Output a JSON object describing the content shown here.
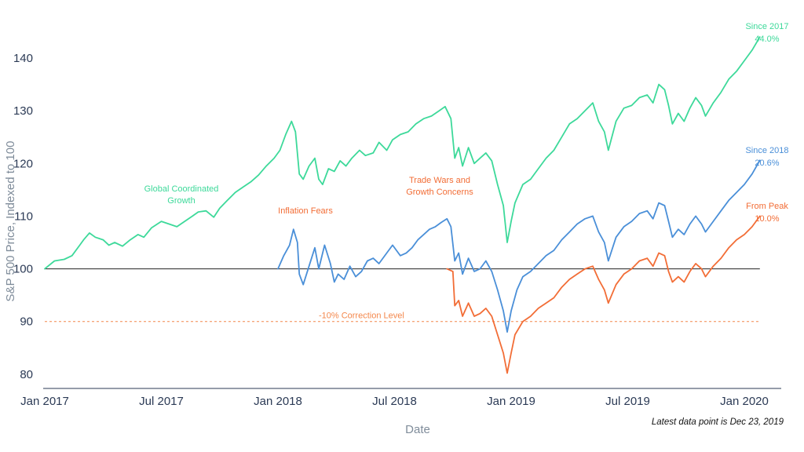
{
  "chart_data": {
    "type": "line",
    "xlabel": "Date",
    "ylabel": "S&P 500 Price, Indexed to 100",
    "ylim": [
      77,
      147
    ],
    "x_ticks": [
      "Jan 2017",
      "Jul 2017",
      "Jan 2018",
      "Jul 2018",
      "Jan 2019",
      "Jul 2019",
      "Jan 2020"
    ],
    "y_ticks": [
      80,
      90,
      100,
      110,
      120,
      130,
      140
    ],
    "x_range_months": [
      0,
      36
    ],
    "baseline": {
      "value": 100,
      "color": "#222222"
    },
    "correction": {
      "value": 90,
      "label": "-10% Correction Level",
      "color": "#f4874b"
    },
    "series": [
      {
        "name": "Since 2017",
        "color": "#3dd99a",
        "end_label": "44.0%",
        "points": [
          [
            0,
            100
          ],
          [
            0.5,
            101.5
          ],
          [
            1,
            101.8
          ],
          [
            1.4,
            102.5
          ],
          [
            1.8,
            104.5
          ],
          [
            2.0,
            105.5
          ],
          [
            2.3,
            106.8
          ],
          [
            2.6,
            106
          ],
          [
            3.0,
            105.5
          ],
          [
            3.3,
            104.5
          ],
          [
            3.6,
            105
          ],
          [
            4.0,
            104.3
          ],
          [
            4.4,
            105.5
          ],
          [
            4.8,
            106.5
          ],
          [
            5.1,
            106
          ],
          [
            5.5,
            107.8
          ],
          [
            6.0,
            109
          ],
          [
            6.4,
            108.5
          ],
          [
            6.8,
            108
          ],
          [
            7.2,
            109
          ],
          [
            7.6,
            110
          ],
          [
            7.9,
            110.8
          ],
          [
            8.3,
            111
          ],
          [
            8.7,
            109.8
          ],
          [
            9.0,
            111.5
          ],
          [
            9.4,
            113
          ],
          [
            9.8,
            114.5
          ],
          [
            10.2,
            115.5
          ],
          [
            10.6,
            116.5
          ],
          [
            11.0,
            117.8
          ],
          [
            11.4,
            119.5
          ],
          [
            11.8,
            121
          ],
          [
            12.1,
            122.5
          ],
          [
            12.4,
            125.5
          ],
          [
            12.7,
            128
          ],
          [
            12.9,
            126
          ],
          [
            13.1,
            118
          ],
          [
            13.3,
            117
          ],
          [
            13.6,
            119.5
          ],
          [
            13.9,
            121
          ],
          [
            14.1,
            117
          ],
          [
            14.3,
            116
          ],
          [
            14.6,
            119
          ],
          [
            14.9,
            118.5
          ],
          [
            15.2,
            120.5
          ],
          [
            15.5,
            119.5
          ],
          [
            15.8,
            121
          ],
          [
            16.2,
            122.5
          ],
          [
            16.5,
            121.5
          ],
          [
            16.9,
            122
          ],
          [
            17.2,
            124
          ],
          [
            17.6,
            122.5
          ],
          [
            17.9,
            124.5
          ],
          [
            18.3,
            125.5
          ],
          [
            18.7,
            126
          ],
          [
            19.1,
            127.5
          ],
          [
            19.5,
            128.5
          ],
          [
            19.9,
            129
          ],
          [
            20.3,
            130
          ],
          [
            20.6,
            130.8
          ],
          [
            20.9,
            128.5
          ],
          [
            21.1,
            121
          ],
          [
            21.3,
            123
          ],
          [
            21.5,
            119.5
          ],
          [
            21.8,
            123
          ],
          [
            22.1,
            120
          ],
          [
            22.4,
            121
          ],
          [
            22.7,
            122
          ],
          [
            23.0,
            120.5
          ],
          [
            23.3,
            116
          ],
          [
            23.6,
            112
          ],
          [
            23.8,
            105
          ],
          [
            24.0,
            109
          ],
          [
            24.2,
            112.5
          ],
          [
            24.6,
            116
          ],
          [
            25.0,
            117
          ],
          [
            25.4,
            119
          ],
          [
            25.8,
            121
          ],
          [
            26.2,
            122.5
          ],
          [
            26.6,
            125
          ],
          [
            27.0,
            127.5
          ],
          [
            27.4,
            128.5
          ],
          [
            27.8,
            130
          ],
          [
            28.2,
            131.5
          ],
          [
            28.5,
            128
          ],
          [
            28.8,
            126
          ],
          [
            29.0,
            122.5
          ],
          [
            29.4,
            128
          ],
          [
            29.8,
            130.5
          ],
          [
            30.2,
            131
          ],
          [
            30.6,
            132.5
          ],
          [
            31.0,
            133
          ],
          [
            31.3,
            131.5
          ],
          [
            31.6,
            135
          ],
          [
            31.9,
            134
          ],
          [
            32.1,
            131
          ],
          [
            32.3,
            127.5
          ],
          [
            32.6,
            129.5
          ],
          [
            32.9,
            128
          ],
          [
            33.2,
            130.5
          ],
          [
            33.5,
            132.5
          ],
          [
            33.8,
            131
          ],
          [
            34.0,
            129
          ],
          [
            34.4,
            131.5
          ],
          [
            34.8,
            133.5
          ],
          [
            35.2,
            136
          ],
          [
            35.6,
            137.5
          ],
          [
            36.0,
            139.5
          ],
          [
            36.4,
            141.5
          ],
          [
            36.8,
            144
          ]
        ]
      },
      {
        "name": "Since 2018",
        "color": "#4a8fd8",
        "end_label": "20.6%",
        "points": [
          [
            12,
            100
          ],
          [
            12.3,
            102.5
          ],
          [
            12.6,
            104.5
          ],
          [
            12.8,
            107.5
          ],
          [
            13.0,
            105
          ],
          [
            13.1,
            99
          ],
          [
            13.3,
            97
          ],
          [
            13.6,
            100.5
          ],
          [
            13.9,
            104
          ],
          [
            14.1,
            100
          ],
          [
            14.4,
            104.5
          ],
          [
            14.7,
            101
          ],
          [
            14.9,
            97.5
          ],
          [
            15.1,
            99
          ],
          [
            15.4,
            98
          ],
          [
            15.7,
            100.5
          ],
          [
            16.0,
            98.5
          ],
          [
            16.3,
            99.5
          ],
          [
            16.6,
            101.5
          ],
          [
            16.9,
            102
          ],
          [
            17.2,
            101
          ],
          [
            17.6,
            103
          ],
          [
            17.9,
            104.5
          ],
          [
            18.3,
            102.5
          ],
          [
            18.6,
            103
          ],
          [
            18.9,
            104
          ],
          [
            19.2,
            105.5
          ],
          [
            19.5,
            106.5
          ],
          [
            19.8,
            107.5
          ],
          [
            20.1,
            108
          ],
          [
            20.4,
            108.8
          ],
          [
            20.7,
            109.5
          ],
          [
            20.9,
            108
          ],
          [
            21.1,
            101.5
          ],
          [
            21.3,
            103
          ],
          [
            21.5,
            99
          ],
          [
            21.8,
            102
          ],
          [
            22.1,
            99.5
          ],
          [
            22.4,
            100
          ],
          [
            22.7,
            101.5
          ],
          [
            23.0,
            99.5
          ],
          [
            23.3,
            96
          ],
          [
            23.6,
            92
          ],
          [
            23.8,
            88
          ],
          [
            24.0,
            92
          ],
          [
            24.3,
            96
          ],
          [
            24.6,
            98.5
          ],
          [
            25.0,
            99.5
          ],
          [
            25.4,
            101
          ],
          [
            25.8,
            102.5
          ],
          [
            26.2,
            103.5
          ],
          [
            26.6,
            105.5
          ],
          [
            27.0,
            107
          ],
          [
            27.4,
            108.5
          ],
          [
            27.8,
            109.5
          ],
          [
            28.2,
            110
          ],
          [
            28.5,
            107
          ],
          [
            28.8,
            105
          ],
          [
            29.0,
            101.5
          ],
          [
            29.4,
            106
          ],
          [
            29.8,
            108
          ],
          [
            30.2,
            109
          ],
          [
            30.6,
            110.5
          ],
          [
            31.0,
            111
          ],
          [
            31.3,
            109.5
          ],
          [
            31.6,
            112.5
          ],
          [
            31.9,
            112
          ],
          [
            32.1,
            109
          ],
          [
            32.3,
            106
          ],
          [
            32.6,
            107.5
          ],
          [
            32.9,
            106.5
          ],
          [
            33.2,
            108.5
          ],
          [
            33.5,
            110
          ],
          [
            33.8,
            108.5
          ],
          [
            34.0,
            107
          ],
          [
            34.4,
            109
          ],
          [
            34.8,
            111
          ],
          [
            35.2,
            113
          ],
          [
            35.6,
            114.5
          ],
          [
            36.0,
            116
          ],
          [
            36.4,
            118
          ],
          [
            36.8,
            120.6
          ]
        ]
      },
      {
        "name": "From Peak",
        "color": "#f26d36",
        "end_label": "10.0%",
        "points": [
          [
            20.7,
            100
          ],
          [
            21.0,
            99.5
          ],
          [
            21.1,
            93
          ],
          [
            21.3,
            94
          ],
          [
            21.5,
            91
          ],
          [
            21.8,
            93.5
          ],
          [
            22.1,
            91
          ],
          [
            22.4,
            91.5
          ],
          [
            22.7,
            92.5
          ],
          [
            23.0,
            91
          ],
          [
            23.3,
            87.5
          ],
          [
            23.6,
            84
          ],
          [
            23.8,
            80.2
          ],
          [
            24.0,
            84
          ],
          [
            24.2,
            87.5
          ],
          [
            24.6,
            90
          ],
          [
            25.0,
            91
          ],
          [
            25.4,
            92.5
          ],
          [
            25.8,
            93.5
          ],
          [
            26.2,
            94.5
          ],
          [
            26.6,
            96.5
          ],
          [
            27.0,
            98
          ],
          [
            27.4,
            99
          ],
          [
            27.8,
            100
          ],
          [
            28.2,
            100.5
          ],
          [
            28.5,
            98
          ],
          [
            28.8,
            96
          ],
          [
            29.0,
            93.5
          ],
          [
            29.4,
            97
          ],
          [
            29.8,
            99
          ],
          [
            30.2,
            100
          ],
          [
            30.6,
            101.5
          ],
          [
            31.0,
            102
          ],
          [
            31.3,
            100.5
          ],
          [
            31.6,
            103
          ],
          [
            31.9,
            102.5
          ],
          [
            32.1,
            99.5
          ],
          [
            32.3,
            97.5
          ],
          [
            32.6,
            98.5
          ],
          [
            32.9,
            97.5
          ],
          [
            33.2,
            99.5
          ],
          [
            33.5,
            101
          ],
          [
            33.8,
            100
          ],
          [
            34.0,
            98.5
          ],
          [
            34.4,
            100.5
          ],
          [
            34.8,
            102
          ],
          [
            35.2,
            104
          ],
          [
            35.6,
            105.5
          ],
          [
            36.0,
            106.5
          ],
          [
            36.4,
            108
          ],
          [
            36.8,
            110
          ]
        ]
      }
    ],
    "annotations": [
      {
        "lines": [
          "Global Coordinated",
          "Growth"
        ],
        "color": "#3dd99a"
      },
      {
        "lines": [
          "Inflation Fears"
        ],
        "color": "#f26d36"
      },
      {
        "lines": [
          "Trade Wars and",
          "Growth Concerns"
        ],
        "color": "#f26d36"
      }
    ],
    "footnote": "Latest data point is Dec 23, 2019"
  }
}
